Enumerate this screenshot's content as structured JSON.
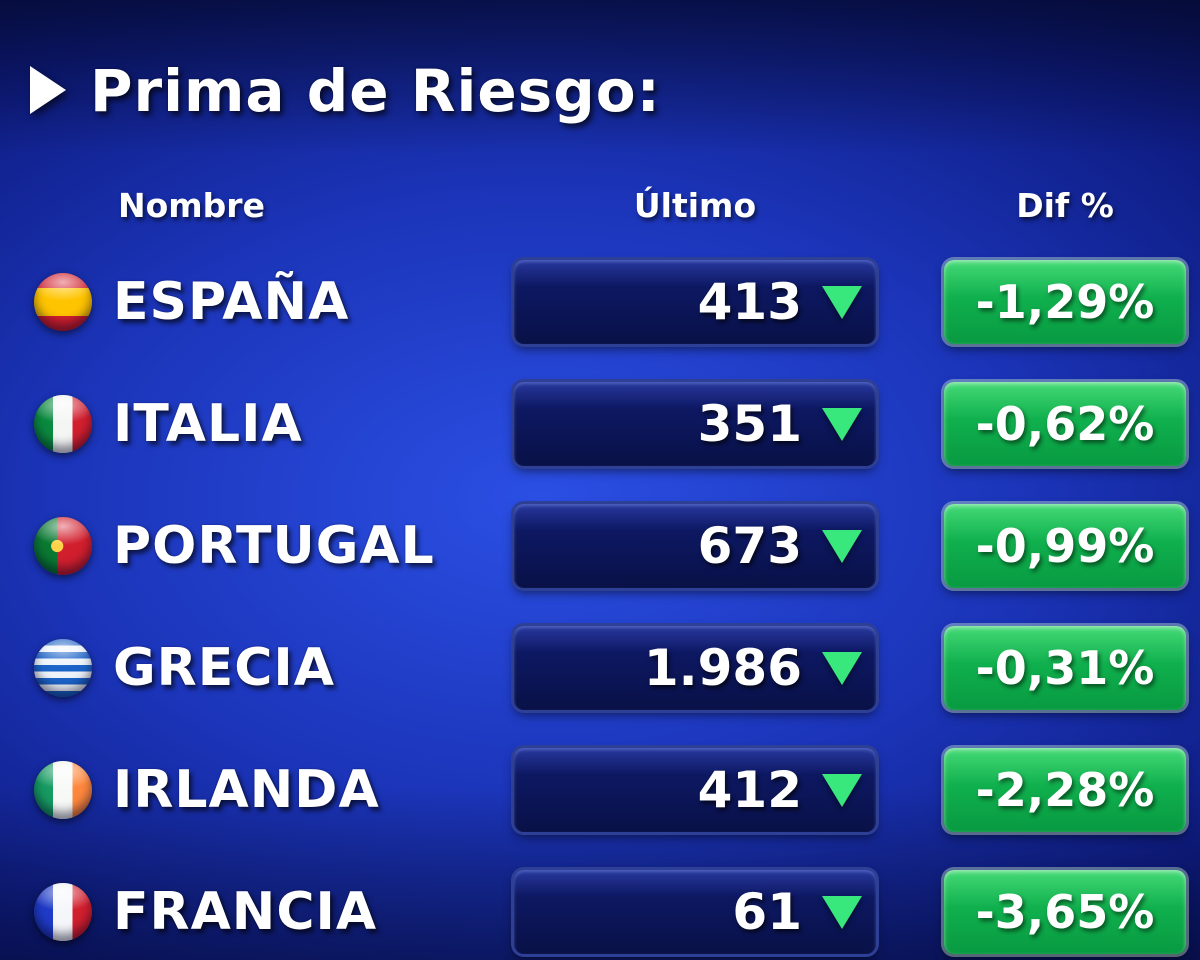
{
  "title": "Prima de Riesgo:",
  "columns": {
    "name": "Nombre",
    "last": "Último",
    "diff": "Dif %"
  },
  "rows": [
    {
      "name": "ESPAÑA",
      "last": "413",
      "diff": "-1,29%",
      "trend": "down",
      "flag": "spain-flag"
    },
    {
      "name": "ITALIA",
      "last": "351",
      "diff": "-0,62%",
      "trend": "down",
      "flag": "italy-flag"
    },
    {
      "name": "PORTUGAL",
      "last": "673",
      "diff": "-0,99%",
      "trend": "down",
      "flag": "portugal-flag"
    },
    {
      "name": "GRECIA",
      "last": "1.986",
      "diff": "-0,31%",
      "trend": "down",
      "flag": "greece-flag"
    },
    {
      "name": "IRLANDA",
      "last": "412",
      "diff": "-2,28%",
      "trend": "down",
      "flag": "ireland-flag"
    },
    {
      "name": "FRANCIA",
      "last": "61",
      "diff": "-3,65%",
      "trend": "down",
      "flag": "france-flag"
    }
  ],
  "colors": {
    "background_blue": "#1b34b8",
    "last_box_blue": "#0d1862",
    "diff_box_green": "#10b04e",
    "arrow_green": "#39e87c",
    "text_white": "#ffffff"
  },
  "chart_data": {
    "type": "table",
    "title": "Prima de Riesgo:",
    "columns": [
      "Nombre",
      "Último",
      "Dif %"
    ],
    "rows": [
      [
        "ESPAÑA",
        413,
        "-1,29%"
      ],
      [
        "ITALIA",
        351,
        "-0,62%"
      ],
      [
        "PORTUGAL",
        673,
        "-0,99%"
      ],
      [
        "GRECIA",
        1986,
        "-0,31%"
      ],
      [
        "IRLANDA",
        412,
        "-2,28%"
      ],
      [
        "FRANCIA",
        61,
        "-3,65%"
      ]
    ],
    "notes": "All rows trending down (green down-arrows); Dif % values shown on green boxes"
  }
}
